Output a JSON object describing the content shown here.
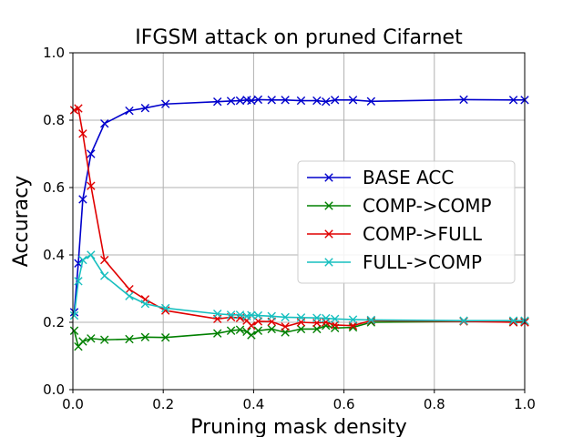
{
  "chart_data": {
    "type": "line",
    "title": "IFGSM attack on pruned Cifarnet",
    "xlabel": "Pruning mask density",
    "ylabel": "Accuracy",
    "xlim": [
      0.0,
      1.0
    ],
    "ylim": [
      0.0,
      1.0
    ],
    "xticks": [
      "0.0",
      "0.2",
      "0.4",
      "0.6",
      "0.8",
      "1.0"
    ],
    "yticks": [
      "0.0",
      "0.2",
      "0.4",
      "0.6",
      "0.8",
      "1.0"
    ],
    "grid": true,
    "legend_position": "center-right",
    "series": [
      {
        "name": "BASE ACC",
        "color": "#0000cc",
        "x": [
          0.003,
          0.012,
          0.022,
          0.04,
          0.07,
          0.125,
          0.16,
          0.205,
          0.32,
          0.35,
          0.37,
          0.385,
          0.395,
          0.41,
          0.44,
          0.47,
          0.505,
          0.54,
          0.56,
          0.58,
          0.62,
          0.66,
          0.865,
          0.975,
          1.0
        ],
        "y": [
          0.23,
          0.375,
          0.565,
          0.7,
          0.79,
          0.828,
          0.836,
          0.848,
          0.855,
          0.857,
          0.858,
          0.86,
          0.858,
          0.861,
          0.86,
          0.86,
          0.858,
          0.858,
          0.855,
          0.86,
          0.86,
          0.856,
          0.861,
          0.86,
          0.86
        ]
      },
      {
        "name": "COMP->COMP",
        "color": "#008000",
        "x": [
          0.003,
          0.012,
          0.022,
          0.04,
          0.07,
          0.125,
          0.16,
          0.205,
          0.32,
          0.35,
          0.37,
          0.385,
          0.395,
          0.41,
          0.44,
          0.47,
          0.505,
          0.54,
          0.56,
          0.58,
          0.62,
          0.66,
          0.865,
          0.975,
          1.0
        ],
        "y": [
          0.175,
          0.128,
          0.143,
          0.152,
          0.148,
          0.15,
          0.156,
          0.155,
          0.167,
          0.175,
          0.178,
          0.172,
          0.162,
          0.175,
          0.18,
          0.17,
          0.18,
          0.18,
          0.19,
          0.183,
          0.185,
          0.2,
          0.203,
          0.202,
          0.202
        ]
      },
      {
        "name": "COMP->FULL",
        "color": "#e00000",
        "x": [
          0.003,
          0.012,
          0.022,
          0.04,
          0.07,
          0.125,
          0.16,
          0.205,
          0.32,
          0.35,
          0.37,
          0.385,
          0.395,
          0.41,
          0.44,
          0.47,
          0.505,
          0.54,
          0.56,
          0.58,
          0.62,
          0.66,
          0.865,
          0.975,
          1.0
        ],
        "y": [
          0.83,
          0.835,
          0.76,
          0.605,
          0.385,
          0.298,
          0.268,
          0.235,
          0.21,
          0.215,
          0.213,
          0.205,
          0.19,
          0.203,
          0.202,
          0.187,
          0.2,
          0.198,
          0.2,
          0.192,
          0.19,
          0.205,
          0.203,
          0.2,
          0.2
        ]
      },
      {
        "name": "FULL->COMP",
        "color": "#17bfbf",
        "x": [
          0.003,
          0.012,
          0.022,
          0.04,
          0.07,
          0.125,
          0.16,
          0.205,
          0.32,
          0.35,
          0.37,
          0.385,
          0.395,
          0.41,
          0.44,
          0.47,
          0.505,
          0.54,
          0.56,
          0.58,
          0.62,
          0.66,
          0.865,
          0.975,
          1.0
        ],
        "y": [
          0.22,
          0.322,
          0.385,
          0.4,
          0.338,
          0.278,
          0.255,
          0.242,
          0.225,
          0.222,
          0.222,
          0.218,
          0.221,
          0.22,
          0.218,
          0.215,
          0.214,
          0.213,
          0.212,
          0.21,
          0.208,
          0.207,
          0.205,
          0.205,
          0.205
        ]
      }
    ]
  }
}
